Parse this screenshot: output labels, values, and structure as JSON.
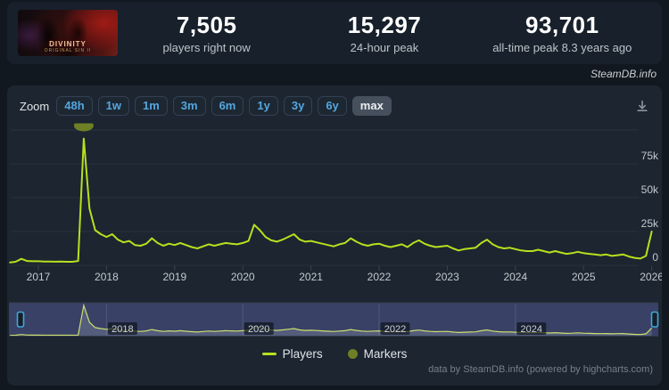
{
  "header": {
    "game": {
      "logo_line1": "DIVINITY",
      "logo_line2": "ORIGINAL SIN II"
    },
    "stats": [
      {
        "value": "7,505",
        "label": "players right now"
      },
      {
        "value": "15,297",
        "label": "24-hour peak"
      },
      {
        "value": "93,701",
        "label": "all-time peak 8.3 years ago"
      }
    ]
  },
  "watermark": "SteamDB.info",
  "toolbar": {
    "zoom_label": "Zoom",
    "ranges": [
      "48h",
      "1w",
      "1m",
      "3m",
      "6m",
      "1y",
      "3y",
      "6y",
      "max"
    ],
    "selected": "max"
  },
  "chart_data": {
    "type": "line",
    "title": "",
    "series": [
      {
        "name": "Players",
        "color": "#b7e01e",
        "interval": "monthly",
        "start_month": "2016-08",
        "unit": "concurrent players (thousands)",
        "values_thousands": [
          2.2,
          2.6,
          4.8,
          3.2,
          3.0,
          3.0,
          2.8,
          2.8,
          2.7,
          2.8,
          2.6,
          2.6,
          3.2,
          93.7,
          42,
          26,
          23,
          21,
          23,
          19,
          17,
          18,
          15,
          14.5,
          16,
          20,
          16.5,
          14.5,
          16,
          15,
          16.5,
          15,
          13.5,
          12.5,
          14,
          15.5,
          14.5,
          15.5,
          16.5,
          16,
          15.5,
          16.5,
          18,
          30,
          26,
          21,
          18.5,
          17.5,
          19,
          21,
          23,
          19,
          17.5,
          18,
          17,
          16,
          15,
          14,
          15.5,
          16.5,
          20,
          17.5,
          15.5,
          14.5,
          15.5,
          16,
          14.5,
          13.5,
          14.5,
          15.5,
          13.5,
          16.5,
          18.5,
          16,
          14.5,
          13.5,
          14,
          14.5,
          12.5,
          11,
          12,
          12.5,
          13,
          16.5,
          19,
          15.5,
          13.5,
          12.5,
          13,
          12,
          11,
          10.5,
          10.5,
          11.5,
          10.5,
          9.5,
          10.5,
          9.5,
          8.5,
          9,
          10,
          9,
          8.5,
          8,
          7.5,
          8,
          7,
          7.5,
          8,
          6.5,
          5.5,
          5,
          7,
          25
        ]
      }
    ],
    "markers": {
      "name": "Markers",
      "color": "#6e7f26",
      "points": [
        {
          "month": "2017-09",
          "value_thousands": 93.7
        }
      ]
    },
    "y_axis": {
      "range_thousands": [
        0,
        100
      ],
      "ticks_thousands": [
        0,
        25,
        50,
        75,
        100
      ],
      "tick_labels": [
        "0",
        "25k",
        "50k",
        "75k",
        ""
      ],
      "grid": true,
      "labels_position": "inside-right"
    },
    "x_axis": {
      "tick_labels": [
        "2017",
        "2018",
        "2019",
        "2020",
        "2021",
        "2022",
        "2023",
        "2024",
        "2025",
        "2026"
      ]
    },
    "navigator": {
      "tick_labels": [
        "2018",
        "2020",
        "2022",
        "2024"
      ],
      "selected_range": "full"
    },
    "legend": {
      "position": "bottom-center",
      "items": [
        {
          "label": "Players",
          "swatch": "line",
          "color": "#b7e01e"
        },
        {
          "label": "Markers",
          "swatch": "circle",
          "color": "#6e7f26"
        }
      ]
    }
  },
  "footer": {
    "credit": "data by SteamDB.info (powered by highcharts.com)"
  }
}
